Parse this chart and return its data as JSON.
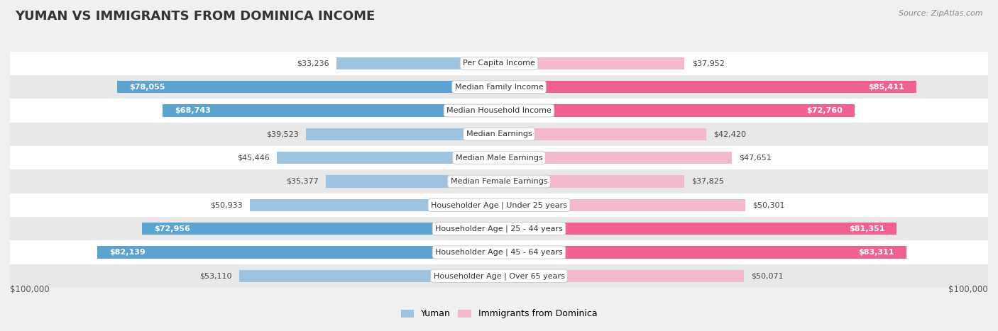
{
  "title": "Yuman vs Immigrants from Dominica Income",
  "source": "Source: ZipAtlas.com",
  "categories": [
    "Per Capita Income",
    "Median Family Income",
    "Median Household Income",
    "Median Earnings",
    "Median Male Earnings",
    "Median Female Earnings",
    "Householder Age | Under 25 years",
    "Householder Age | 25 - 44 years",
    "Householder Age | 45 - 64 years",
    "Householder Age | Over 65 years"
  ],
  "yuman_values": [
    33236,
    78055,
    68743,
    39523,
    45446,
    35377,
    50933,
    72956,
    82139,
    53110
  ],
  "dominica_values": [
    37952,
    85411,
    72760,
    42420,
    47651,
    37825,
    50301,
    81351,
    83311,
    50071
  ],
  "yuman_labels": [
    "$33,236",
    "$78,055",
    "$68,743",
    "$39,523",
    "$45,446",
    "$35,377",
    "$50,933",
    "$72,956",
    "$82,139",
    "$53,110"
  ],
  "dominica_labels": [
    "$37,952",
    "$85,411",
    "$72,760",
    "$42,420",
    "$47,651",
    "$37,825",
    "$50,301",
    "$81,351",
    "$83,311",
    "$50,071"
  ],
  "max_value": 100000,
  "yuman_color_light": "#9dc3e0",
  "yuman_color_dark": "#5ba3d0",
  "dominica_color_light": "#f4b8cc",
  "dominica_color_dark": "#f06090",
  "bg_color": "#f0f0f0",
  "row_bg_light": "#ffffff",
  "row_bg_dark": "#e8e8e8",
  "legend_yuman": "Yuman",
  "legend_dominica": "Immigrants from Dominica",
  "xlabel_left": "$100,000",
  "xlabel_right": "$100,000",
  "label_inside_threshold": 55000,
  "title_fontsize": 13,
  "label_fontsize": 8,
  "cat_fontsize": 8
}
